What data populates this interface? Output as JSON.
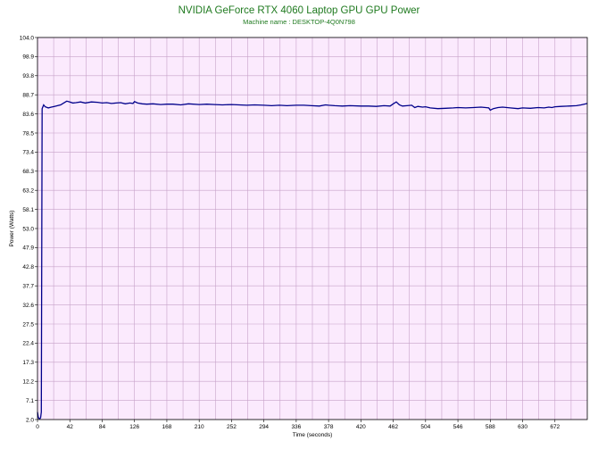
{
  "chart_data": {
    "type": "line",
    "title": "NVIDIA GeForce RTX 4060 Laptop GPU GPU Power",
    "subtitle": "Machine name : DESKTOP-4Q0N798",
    "xlabel": "Time (seconds)",
    "ylabel": "Power (Watts)",
    "xlim": [
      0,
      714
    ],
    "ylim": [
      2.0,
      104.0
    ],
    "xticks": [
      0,
      42,
      84,
      126,
      168,
      210,
      252,
      294,
      336,
      378,
      420,
      462,
      504,
      546,
      588,
      630,
      672
    ],
    "yticks": [
      2.0,
      7.1,
      12.2,
      17.3,
      22.4,
      27.5,
      32.6,
      37.7,
      42.8,
      47.9,
      53.0,
      58.1,
      63.2,
      68.3,
      73.4,
      78.5,
      83.6,
      88.7,
      93.8,
      98.9,
      104.0
    ],
    "grid": true,
    "background": "#fbeafd",
    "grid_color": "#c7a2c9",
    "line_color": "#00008b",
    "title_color": "#1f7a1f",
    "series": [
      {
        "x": [
          0,
          1,
          2,
          3,
          4,
          5,
          6,
          8,
          10,
          14,
          18,
          22,
          26,
          30,
          34,
          38,
          42,
          46,
          50,
          56,
          62,
          70,
          78,
          84,
          90,
          96,
          102,
          108,
          114,
          120,
          124,
          126,
          130,
          136,
          142,
          150,
          160,
          168,
          176,
          186,
          196,
          210,
          220,
          230,
          240,
          252,
          262,
          272,
          282,
          294,
          304,
          314,
          324,
          336,
          346,
          356,
          366,
          374,
          378,
          386,
          396,
          406,
          420,
          430,
          440,
          450,
          458,
          462,
          466,
          470,
          474,
          480,
          486,
          490,
          494,
          500,
          504,
          510,
          520,
          530,
          540,
          546,
          556,
          566,
          576,
          582,
          586,
          588,
          592,
          598,
          604,
          614,
          624,
          630,
          640,
          650,
          658,
          664,
          668,
          672,
          680,
          690,
          700,
          706,
          710,
          714
        ],
        "values": [
          4.0,
          2.6,
          2.3,
          2.2,
          2.5,
          4.0,
          85.0,
          86.0,
          85.5,
          85.2,
          85.4,
          85.6,
          85.8,
          86.0,
          86.5,
          87.0,
          86.8,
          86.5,
          86.6,
          86.8,
          86.5,
          86.8,
          86.7,
          86.5,
          86.6,
          86.4,
          86.5,
          86.6,
          86.3,
          86.5,
          86.4,
          86.9,
          86.5,
          86.3,
          86.2,
          86.3,
          86.1,
          86.2,
          86.2,
          86.0,
          86.3,
          86.1,
          86.2,
          86.1,
          86.0,
          86.1,
          86.0,
          85.9,
          86.0,
          85.9,
          85.8,
          85.9,
          85.8,
          85.9,
          85.9,
          85.8,
          85.7,
          86.0,
          85.9,
          85.8,
          85.7,
          85.8,
          85.7,
          85.7,
          85.6,
          85.8,
          85.7,
          86.3,
          86.8,
          86.0,
          85.7,
          85.8,
          85.9,
          85.3,
          85.6,
          85.4,
          85.5,
          85.2,
          85.0,
          85.1,
          85.2,
          85.3,
          85.2,
          85.3,
          85.4,
          85.3,
          85.2,
          84.6,
          85.0,
          85.3,
          85.4,
          85.2,
          85.0,
          85.2,
          85.1,
          85.3,
          85.2,
          85.4,
          85.3,
          85.5,
          85.6,
          85.7,
          85.8,
          86.0,
          86.2,
          86.4
        ]
      }
    ]
  }
}
